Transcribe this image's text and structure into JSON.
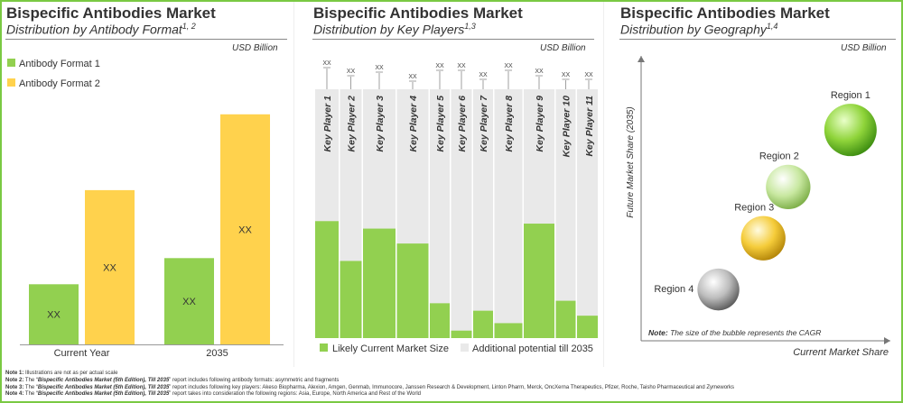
{
  "colors": {
    "green": "#92d050",
    "yellow": "#ffd24d",
    "light": "#e9e9e9",
    "frame": "#7ac943"
  },
  "panels": {
    "format": {
      "title": "Bispecific Antibodies Market",
      "subtitle": "Distribution by Antibody Format",
      "subtitle_sup": "1, 2",
      "unit": "USD Billion"
    },
    "players": {
      "title": "Bispecific Antibodies Market",
      "subtitle": "Distribution by Key Players",
      "subtitle_sup": "1,3",
      "unit": "USD Billion"
    },
    "geography": {
      "title": "Bispecific Antibodies Market",
      "subtitle": "Distribution by Geography",
      "subtitle_sup": "1,4",
      "unit": "USD Billion",
      "note_label": "Note:",
      "note_text": "The size of the bubble represents the CAGR"
    }
  },
  "chart_data": [
    {
      "type": "bar",
      "title": "Distribution by Antibody Format",
      "categories": [
        "Current Year",
        "2035"
      ],
      "series": [
        {
          "name": "Antibody Format 1",
          "values": [
            23,
            33
          ],
          "label": "XX",
          "color": "#92d050"
        },
        {
          "name": "Antibody Format 2",
          "values": [
            59,
            88
          ],
          "label": "XX",
          "color": "#ffd24d"
        }
      ],
      "ylim": [
        0,
        100
      ],
      "ylabel": "USD Billion",
      "legend_position": "top-left"
    },
    {
      "type": "bar",
      "stacked": true,
      "title": "Distribution by Key Players",
      "categories": [
        "Key Player 1",
        "Key Player 2",
        "Key Player 3",
        "Key Player 4",
        "Key Player 5",
        "Key Player 6",
        "Key Player 7",
        "Key Player 8",
        "Key Player 9",
        "Key Player 10",
        "Key Player 11"
      ],
      "series": [
        {
          "name": "Likely Current Market Size",
          "values": [
            47,
            31,
            44,
            38,
            14,
            3,
            11,
            6,
            46,
            15,
            9
          ],
          "color": "#92d050"
        },
        {
          "name": "Additional potential till 2035",
          "values": [
            53,
            69,
            56,
            62,
            86,
            97,
            89,
            94,
            54,
            85,
            91
          ],
          "color": "#e9e9e9"
        }
      ],
      "value_label": "XX",
      "ylim": [
        0,
        100
      ],
      "ylabel": "USD Billion",
      "legend_position": "bottom"
    },
    {
      "type": "scatter",
      "title": "Distribution by Geography",
      "xlabel": "Current Market Share",
      "ylabel": "Future Market Share (2035)",
      "points": [
        {
          "label": "Region 1",
          "x": 84,
          "y": 74,
          "size": 1.0
        },
        {
          "label": "Region 2",
          "x": 59,
          "y": 54,
          "size": 0.85
        },
        {
          "label": "Region 3",
          "x": 49,
          "y": 36,
          "size": 0.85
        },
        {
          "label": "Region 4",
          "x": 31,
          "y": 18,
          "size": 0.8
        }
      ],
      "xlim": [
        0,
        100
      ],
      "ylim": [
        0,
        100
      ]
    }
  ],
  "notes": [
    {
      "label": "Note 1:",
      "text": "Illustrations are not as per actual scale"
    },
    {
      "label": "Note 2:",
      "pre": "The “",
      "report": "Bispecific Antibodies Market (5th Edition), Till 2035",
      "post": "” report includes following antibody formats: asymmetric and fragments"
    },
    {
      "label": "Note 3:",
      "pre": "The “",
      "report": "Bispecific Antibodies Market (5th Edition), Till 2035",
      "post": "” report includes following key players: Akeso Biopharma, Alexion, Amgen, Genmab, Immunocore, Janssen Research & Development, Linton Pharm, Merck, OncXerna Therapeutics, Pfizer, Roche, Taisho Pharmaceutical and Zymeworks"
    },
    {
      "label": "Note 4:",
      "pre": "The “",
      "report": "Bispecific Antibodies Market (5th Edition), Till 2035",
      "post": "” report takes into consideration the following regions: Asia, Europe, North America and Rest of the World"
    }
  ]
}
